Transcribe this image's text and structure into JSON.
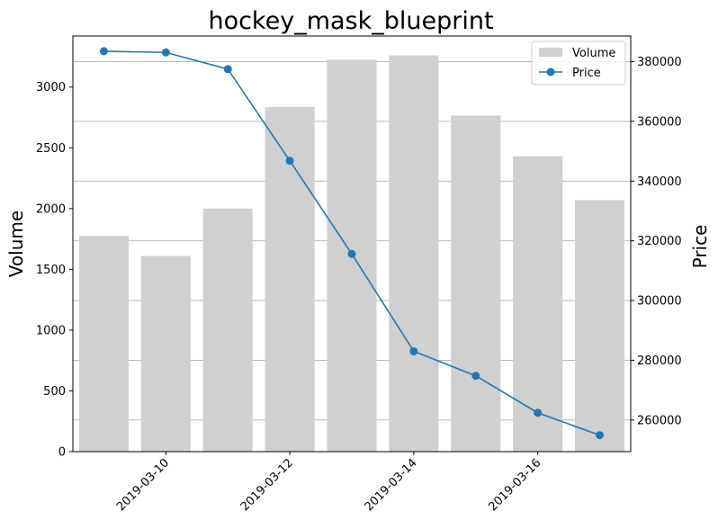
{
  "chart_data": {
    "type": "bar",
    "title": "hockey_mask_blueprint",
    "x": [
      "2019-03-09",
      "2019-03-10",
      "2019-03-11",
      "2019-03-12",
      "2019-03-13",
      "2019-03-14",
      "2019-03-15",
      "2019-03-16",
      "2019-03-17"
    ],
    "xticks": [
      "2019-03-10",
      "2019-03-12",
      "2019-03-14",
      "2019-03-16"
    ],
    "series": [
      {
        "name": "Volume",
        "type": "bar",
        "axis": "left",
        "color": "#d0d0d0",
        "values": [
          1775,
          1610,
          2000,
          2835,
          3225,
          3260,
          2765,
          2430,
          2070
        ]
      },
      {
        "name": "Price",
        "type": "line",
        "axis": "right",
        "color": "#1f77b4",
        "marker": "circle",
        "values": [
          383500,
          383100,
          377500,
          346800,
          315600,
          283000,
          274800,
          262400,
          254900
        ]
      }
    ],
    "ylabel": "Volume",
    "ylim": [
      0,
      3420
    ],
    "yticks": [
      0,
      500,
      1000,
      1500,
      2000,
      2500,
      3000
    ],
    "y2label": "Price",
    "y2lim": [
      249400,
      388600
    ],
    "y2ticks": [
      260000,
      280000,
      300000,
      320000,
      340000,
      360000,
      380000
    ],
    "grid": "horizontal, right axis",
    "legend_position": "upper right"
  }
}
